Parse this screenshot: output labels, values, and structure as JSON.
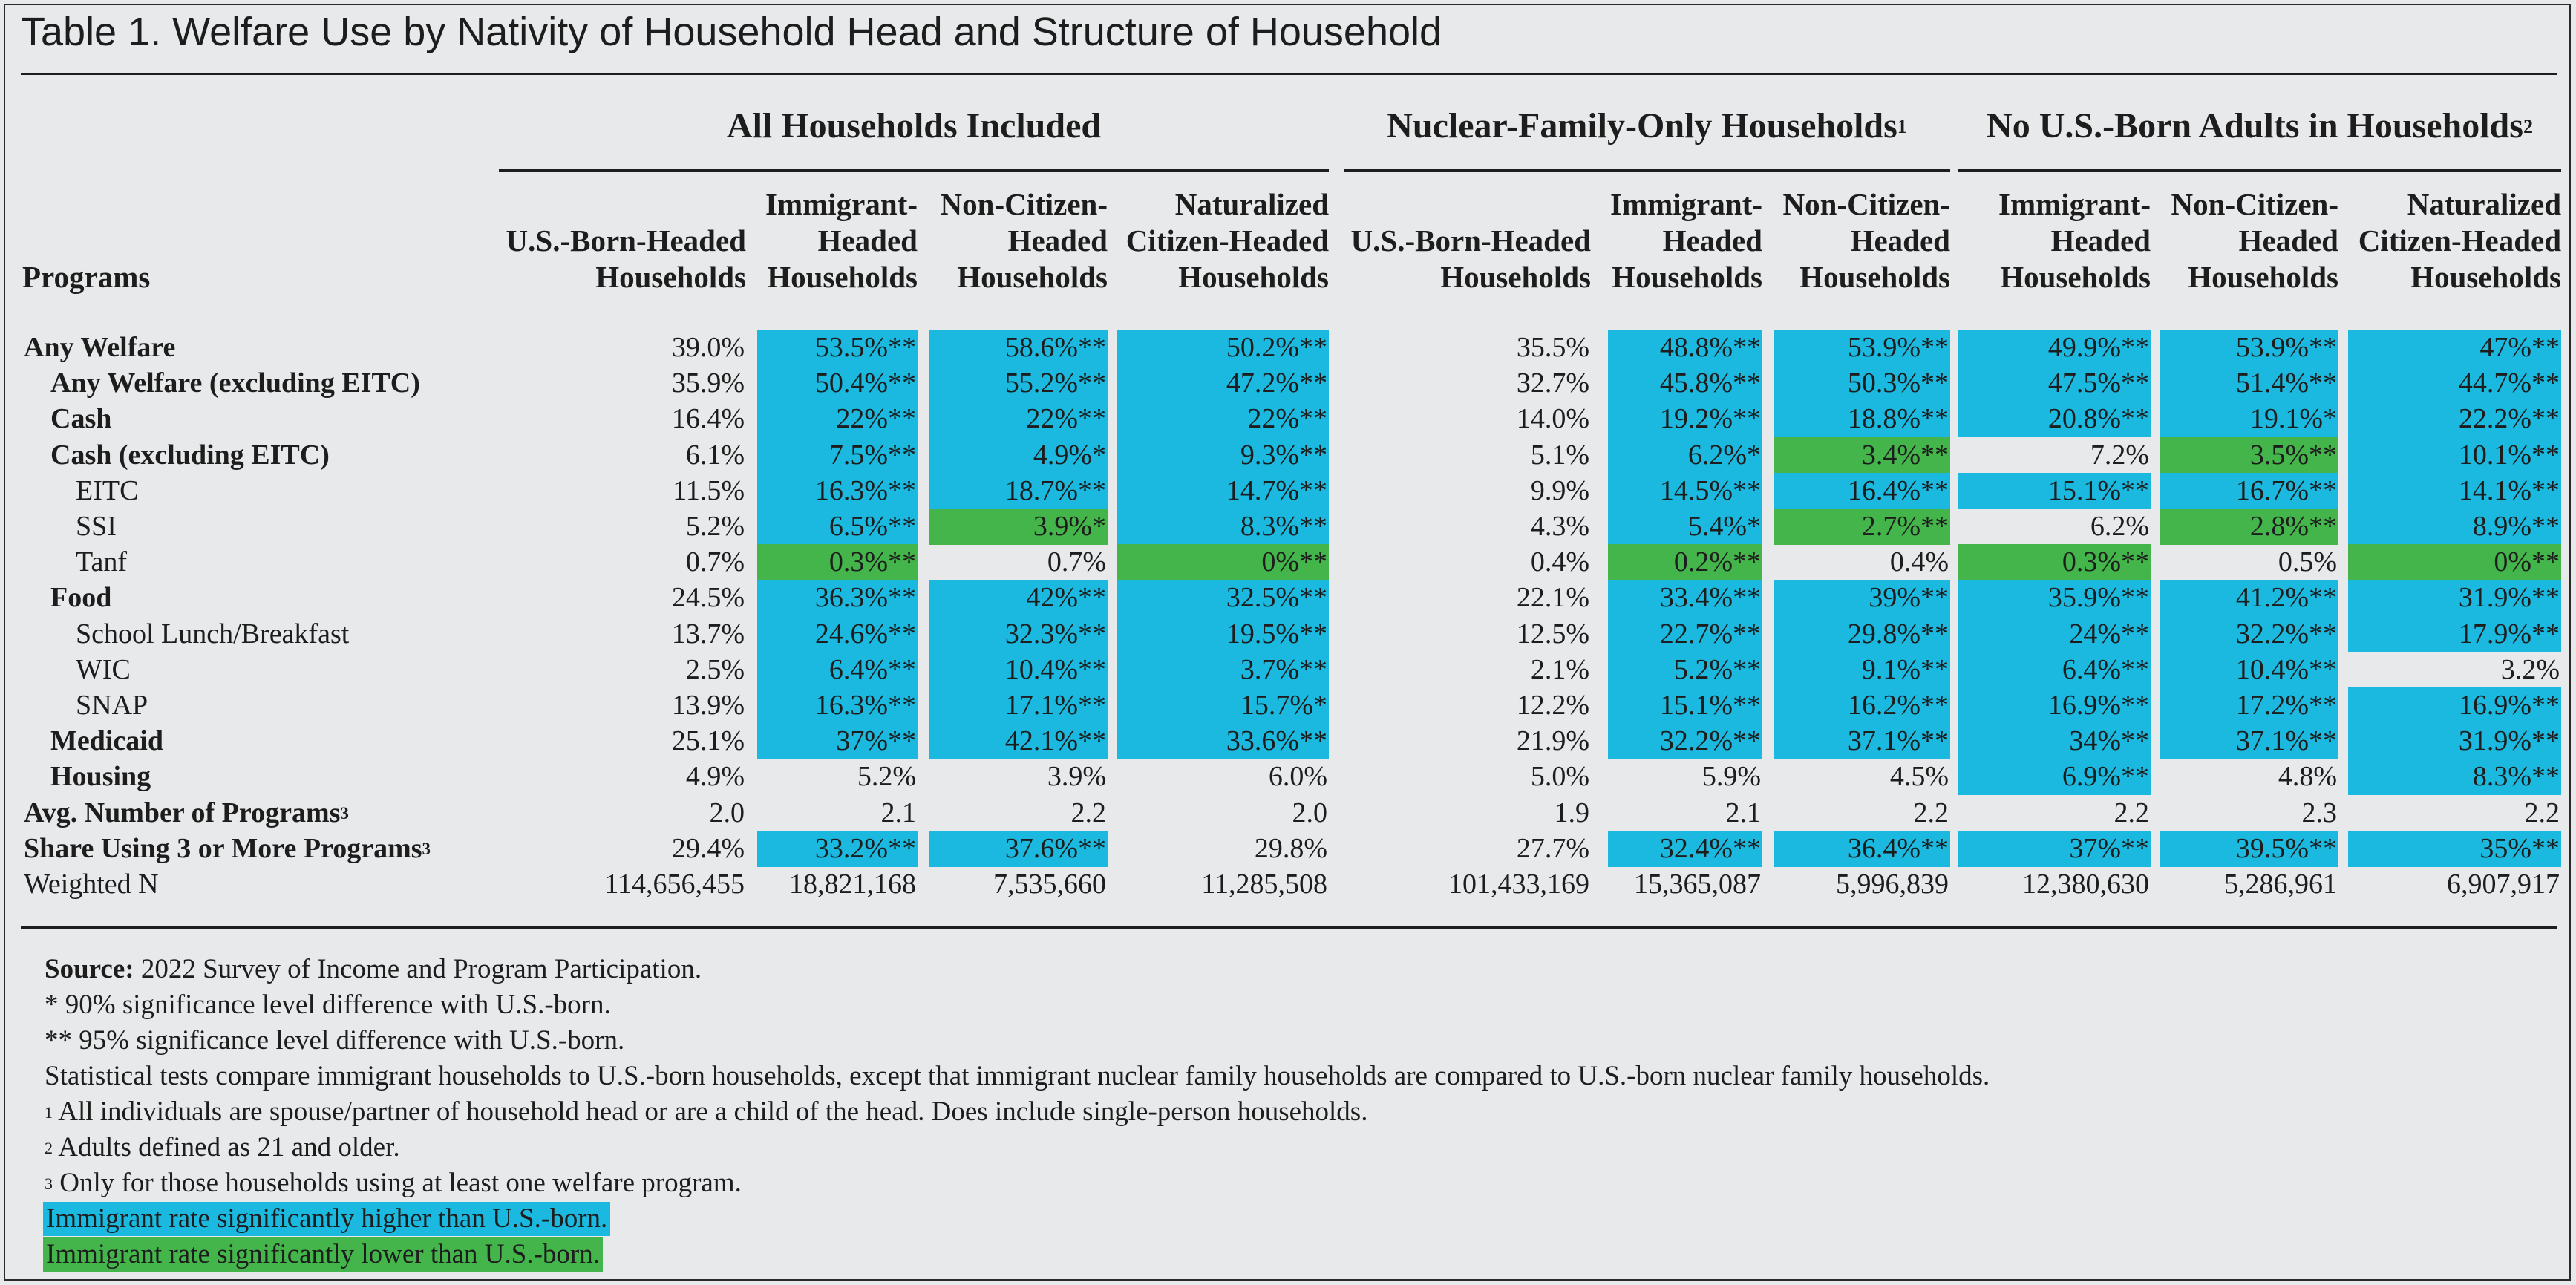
{
  "title": "Table 1. Welfare Use by Nativity of Household Head and Structure of Household",
  "colors": {
    "higher": "#1bb9df",
    "lower": "#44b54a",
    "background": "#e7e9ea"
  },
  "chart_data": {
    "type": "table",
    "stub_header": "Programs",
    "groups": [
      {
        "label": "All Households Included",
        "sup": "",
        "cols": [
          0,
          1,
          2,
          3
        ]
      },
      {
        "label": "Nuclear-Family-Only Households",
        "sup": "1",
        "cols": [
          4,
          5,
          6
        ]
      },
      {
        "label": "No U.S.-Born Adults in Households",
        "sup": "2",
        "cols": [
          7,
          8,
          9
        ]
      }
    ],
    "columns": [
      [
        "U.S.-Born-Headed",
        "Households"
      ],
      [
        "Immigrant-",
        "Headed",
        "Households"
      ],
      [
        "Non-Citizen-",
        "Headed",
        "Households"
      ],
      [
        "Naturalized",
        "Citizen-Headed",
        "Households"
      ],
      [
        "U.S.-Born-Headed",
        "Households"
      ],
      [
        "Immigrant-",
        "Headed",
        "Households"
      ],
      [
        "Non-Citizen-",
        "Headed",
        "Households"
      ],
      [
        "Immigrant-",
        "Headed",
        "Households"
      ],
      [
        "Non-Citizen-",
        "Headed",
        "Households"
      ],
      [
        "Naturalized",
        "Citizen-Headed",
        "Households"
      ]
    ],
    "rows": [
      {
        "label": "Any Welfare",
        "sup": "",
        "bold": true,
        "indent": 0,
        "values": [
          "39.0%",
          "53.5%**",
          "58.6%**",
          "50.2%**",
          "35.5%",
          "48.8%**",
          "53.9%**",
          "49.9%**",
          "53.9%**",
          "47%**"
        ],
        "shade": [
          "",
          "h",
          "h",
          "h",
          "",
          "h",
          "h",
          "h",
          "h",
          "h"
        ]
      },
      {
        "label": "Any Welfare (excluding EITC)",
        "sup": "",
        "bold": true,
        "indent": 1,
        "values": [
          "35.9%",
          "50.4%**",
          "55.2%**",
          "47.2%**",
          "32.7%",
          "45.8%**",
          "50.3%**",
          "47.5%**",
          "51.4%**",
          "44.7%**"
        ],
        "shade": [
          "",
          "h",
          "h",
          "h",
          "",
          "h",
          "h",
          "h",
          "h",
          "h"
        ]
      },
      {
        "label": "Cash",
        "sup": "",
        "bold": true,
        "indent": 1,
        "values": [
          "16.4%",
          "22%**",
          "22%**",
          "22%**",
          "14.0%",
          "19.2%**",
          "18.8%**",
          "20.8%**",
          "19.1%*",
          "22.2%**"
        ],
        "shade": [
          "",
          "h",
          "h",
          "h",
          "",
          "h",
          "h",
          "h",
          "h",
          "h"
        ]
      },
      {
        "label": "Cash (excluding EITC)",
        "sup": "",
        "bold": true,
        "indent": 1,
        "values": [
          "6.1%",
          "7.5%**",
          "4.9%*",
          "9.3%**",
          "5.1%",
          "6.2%*",
          "3.4%**",
          "7.2%",
          "3.5%**",
          "10.1%**"
        ],
        "shade": [
          "",
          "h",
          "h",
          "h",
          "",
          "h",
          "l",
          "",
          "l",
          "h"
        ]
      },
      {
        "label": "EITC",
        "sup": "",
        "bold": false,
        "indent": 2,
        "values": [
          "11.5%",
          "16.3%**",
          "18.7%**",
          "14.7%**",
          "9.9%",
          "14.5%**",
          "16.4%**",
          "15.1%**",
          "16.7%**",
          "14.1%**"
        ],
        "shade": [
          "",
          "h",
          "h",
          "h",
          "",
          "h",
          "h",
          "h",
          "h",
          "h"
        ]
      },
      {
        "label": "SSI",
        "sup": "",
        "bold": false,
        "indent": 2,
        "values": [
          "5.2%",
          "6.5%**",
          "3.9%*",
          "8.3%**",
          "4.3%",
          "5.4%*",
          "2.7%**",
          "6.2%",
          "2.8%**",
          "8.9%**"
        ],
        "shade": [
          "",
          "h",
          "l",
          "h",
          "",
          "h",
          "l",
          "",
          "l",
          "h"
        ]
      },
      {
        "label": "Tanf",
        "sup": "",
        "bold": false,
        "indent": 2,
        "values": [
          "0.7%",
          "0.3%**",
          "0.7%",
          "0%**",
          "0.4%",
          "0.2%**",
          "0.4%",
          "0.3%**",
          "0.5%",
          "0%**"
        ],
        "shade": [
          "",
          "l",
          "",
          "l",
          "",
          "l",
          "",
          "l",
          "",
          "l"
        ]
      },
      {
        "label": "Food",
        "sup": "",
        "bold": true,
        "indent": 1,
        "values": [
          "24.5%",
          "36.3%**",
          "42%**",
          "32.5%**",
          "22.1%",
          "33.4%**",
          "39%**",
          "35.9%**",
          "41.2%**",
          "31.9%**"
        ],
        "shade": [
          "",
          "h",
          "h",
          "h",
          "",
          "h",
          "h",
          "h",
          "h",
          "h"
        ]
      },
      {
        "label": "School Lunch/Breakfast",
        "sup": "",
        "bold": false,
        "indent": 2,
        "values": [
          "13.7%",
          "24.6%**",
          "32.3%**",
          "19.5%**",
          "12.5%",
          "22.7%**",
          "29.8%**",
          "24%**",
          "32.2%**",
          "17.9%**"
        ],
        "shade": [
          "",
          "h",
          "h",
          "h",
          "",
          "h",
          "h",
          "h",
          "h",
          "h"
        ]
      },
      {
        "label": "WIC",
        "sup": "",
        "bold": false,
        "indent": 2,
        "values": [
          "2.5%",
          "6.4%**",
          "10.4%**",
          "3.7%**",
          "2.1%",
          "5.2%**",
          "9.1%**",
          "6.4%**",
          "10.4%**",
          "3.2%"
        ],
        "shade": [
          "",
          "h",
          "h",
          "h",
          "",
          "h",
          "h",
          "h",
          "h",
          ""
        ]
      },
      {
        "label": "SNAP",
        "sup": "",
        "bold": false,
        "indent": 2,
        "values": [
          "13.9%",
          "16.3%**",
          "17.1%**",
          "15.7%*",
          "12.2%",
          "15.1%**",
          "16.2%**",
          "16.9%**",
          "17.2%**",
          "16.9%**"
        ],
        "shade": [
          "",
          "h",
          "h",
          "h",
          "",
          "h",
          "h",
          "h",
          "h",
          "h"
        ]
      },
      {
        "label": "Medicaid",
        "sup": "",
        "bold": true,
        "indent": 1,
        "values": [
          "25.1%",
          "37%**",
          "42.1%**",
          "33.6%**",
          "21.9%",
          "32.2%**",
          "37.1%**",
          "34%**",
          "37.1%**",
          "31.9%**"
        ],
        "shade": [
          "",
          "h",
          "h",
          "h",
          "",
          "h",
          "h",
          "h",
          "h",
          "h"
        ]
      },
      {
        "label": "Housing",
        "sup": "",
        "bold": true,
        "indent": 1,
        "values": [
          "4.9%",
          "5.2%",
          "3.9%",
          "6.0%",
          "5.0%",
          "5.9%",
          "4.5%",
          "6.9%**",
          "4.8%",
          "8.3%**"
        ],
        "shade": [
          "",
          "",
          "",
          "",
          "",
          "",
          "",
          "h",
          "",
          "h"
        ]
      },
      {
        "label": "Avg. Number of Programs",
        "sup": "3",
        "bold": true,
        "indent": 0,
        "values": [
          "2.0",
          "2.1",
          "2.2",
          "2.0",
          "1.9",
          "2.1",
          "2.2",
          "2.2",
          "2.3",
          "2.2"
        ],
        "shade": [
          "",
          "",
          "",
          "",
          "",
          "",
          "",
          "",
          "",
          ""
        ]
      },
      {
        "label": "Share Using 3 or More Programs",
        "sup": "3",
        "bold": true,
        "indent": 0,
        "values": [
          "29.4%",
          "33.2%**",
          "37.6%**",
          "29.8%",
          "27.7%",
          "32.4%**",
          "36.4%**",
          "37%**",
          "39.5%**",
          "35%**"
        ],
        "shade": [
          "",
          "h",
          "h",
          "",
          "",
          "h",
          "h",
          "h",
          "h",
          "h"
        ]
      },
      {
        "label": "Weighted N",
        "sup": "",
        "bold": false,
        "indent": 0,
        "values": [
          "114,656,455",
          "18,821,168",
          "7,535,660",
          "11,285,508",
          "101,433,169",
          "15,365,087",
          "5,996,839",
          "12,380,630",
          "5,286,961",
          "6,907,917"
        ],
        "shade": [
          "",
          "",
          "",
          "",
          "",
          "",
          "",
          "",
          "",
          ""
        ]
      }
    ]
  },
  "notes": {
    "source_label": "Source:",
    "source_text": "2022 Survey of Income and Program Participation.",
    "lines": [
      {
        "sup": "",
        "text": "* 90% significance level difference with U.S.-born."
      },
      {
        "sup": "",
        "text": "** 95% significance level difference with U.S.-born."
      },
      {
        "sup": "",
        "text": "Statistical tests compare immigrant households to U.S.-born households, except that immigrant nuclear family households are compared to U.S.-born nuclear family households."
      },
      {
        "sup": "1",
        "text": "All individuals are spouse/partner of household head or are a child of the head. Does include single-person households."
      },
      {
        "sup": "2",
        "text": "Adults defined as 21 and older."
      },
      {
        "sup": "3",
        "text": "Only for those households using at least one welfare program."
      }
    ],
    "legend_higher": "Immigrant rate significantly higher than U.S.-born.",
    "legend_lower": "Immigrant rate significantly lower than U.S.-born."
  }
}
